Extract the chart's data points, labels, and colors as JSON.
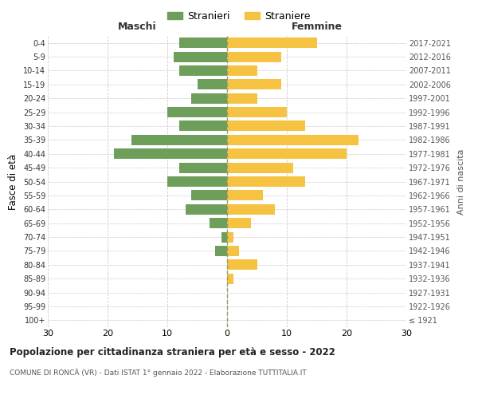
{
  "age_groups": [
    "100+",
    "95-99",
    "90-94",
    "85-89",
    "80-84",
    "75-79",
    "70-74",
    "65-69",
    "60-64",
    "55-59",
    "50-54",
    "45-49",
    "40-44",
    "35-39",
    "30-34",
    "25-29",
    "20-24",
    "15-19",
    "10-14",
    "5-9",
    "0-4"
  ],
  "birth_years": [
    "≤ 1921",
    "1922-1926",
    "1927-1931",
    "1932-1936",
    "1937-1941",
    "1942-1946",
    "1947-1951",
    "1952-1956",
    "1957-1961",
    "1962-1966",
    "1967-1971",
    "1972-1976",
    "1977-1981",
    "1982-1986",
    "1987-1991",
    "1992-1996",
    "1997-2001",
    "2002-2006",
    "2007-2011",
    "2012-2016",
    "2017-2021"
  ],
  "males": [
    0,
    0,
    0,
    0,
    0,
    2,
    1,
    3,
    7,
    6,
    10,
    8,
    19,
    16,
    8,
    10,
    6,
    5,
    8,
    9,
    8
  ],
  "females": [
    0,
    0,
    0,
    1,
    5,
    2,
    1,
    4,
    8,
    6,
    13,
    11,
    20,
    22,
    13,
    10,
    5,
    9,
    5,
    9,
    15
  ],
  "male_color": "#6d9e5a",
  "female_color": "#f5c242",
  "background_color": "#ffffff",
  "grid_color": "#cccccc",
  "title": "Popolazione per cittadinanza straniera per età e sesso - 2022",
  "subtitle": "COMUNE DI RONCÀ (VR) - Dati ISTAT 1° gennaio 2022 - Elaborazione TUTTITALIA.IT",
  "ylabel": "Fasce di età",
  "right_ylabel": "Anni di nascita",
  "xlabel_left": "Maschi",
  "xlabel_right": "Femmine",
  "legend_stranieri": "Stranieri",
  "legend_straniere": "Straniere",
  "xlim": 30
}
